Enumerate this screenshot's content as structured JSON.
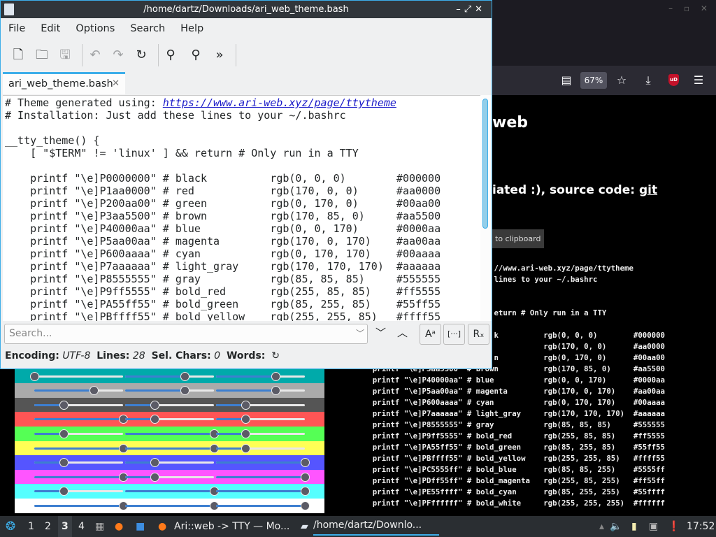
{
  "editor_window": {
    "title": "/home/dartz/Downloads/ari_web_theme.bash",
    "menu": [
      "File",
      "Edit",
      "Options",
      "Search",
      "Help"
    ],
    "toolbar": [
      {
        "icon": "new-file-icon"
      },
      {
        "icon": "open-folder-icon"
      },
      {
        "icon": "save-icon",
        "disabled": true
      },
      {
        "icon": "undo-icon",
        "disabled": true
      },
      {
        "icon": "redo-icon",
        "disabled": true
      },
      {
        "icon": "reload-icon"
      },
      {
        "icon": "find-icon"
      },
      {
        "icon": "find-replace-icon"
      },
      {
        "icon": "more-icon"
      }
    ],
    "tab_label": "ari_web_theme.bash",
    "header_lines": [
      "# Theme generated using: ",
      "# Installation: Just add these lines to your ~/.bashrc",
      "",
      "__tty_theme() {",
      "    [ \"$TERM\" != 'linux' ] && return # Only run in a TTY",
      ""
    ],
    "link": "https://www.ari-web.xyz/page/ttytheme",
    "search_placeholder": "Search...",
    "search_buttons": [
      "Aᵃ",
      "[···]",
      "Rₓ"
    ],
    "status": {
      "encoding_label": "Encoding:",
      "encoding": "UTF-8",
      "lines_label": "Lines:",
      "lines": "28",
      "sel_label": "Sel. Chars:",
      "sel": "0",
      "words_label": "Words:"
    }
  },
  "colors": [
    {
      "idx": "0",
      "hex6": "000000",
      "name": "black",
      "rgb": [
        0,
        0,
        0
      ]
    },
    {
      "idx": "1",
      "hex6": "aa0000",
      "name": "red",
      "rgb": [
        170,
        0,
        0
      ]
    },
    {
      "idx": "2",
      "hex6": "00aa00",
      "name": "green",
      "rgb": [
        0,
        170,
        0
      ]
    },
    {
      "idx": "3",
      "hex6": "aa5500",
      "name": "brown",
      "rgb": [
        170,
        85,
        0
      ]
    },
    {
      "idx": "4",
      "hex6": "0000aa",
      "name": "blue",
      "rgb": [
        0,
        0,
        170
      ]
    },
    {
      "idx": "5",
      "hex6": "aa00aa",
      "name": "magenta",
      "rgb": [
        170,
        0,
        170
      ]
    },
    {
      "idx": "6",
      "hex6": "00aaaa",
      "name": "cyan",
      "rgb": [
        0,
        170,
        170
      ]
    },
    {
      "idx": "7",
      "hex6": "aaaaaa",
      "name": "light_gray",
      "rgb": [
        170,
        170,
        170
      ]
    },
    {
      "idx": "8",
      "hex6": "555555",
      "name": "gray",
      "rgb": [
        85,
        85,
        85
      ]
    },
    {
      "idx": "9",
      "hex6": "ff5555",
      "name": "bold_red",
      "rgb": [
        255,
        85,
        85
      ]
    },
    {
      "idx": "A",
      "hex6": "55ff55",
      "name": "bold_green",
      "rgb": [
        85,
        255,
        85
      ]
    },
    {
      "idx": "B",
      "hex6": "ffff55",
      "name": "bold_yellow",
      "rgb": [
        255,
        255,
        85
      ]
    },
    {
      "idx": "C",
      "hex6": "5555ff",
      "name": "bold_blue",
      "rgb": [
        85,
        85,
        255
      ]
    },
    {
      "idx": "D",
      "hex6": "ff55ff",
      "name": "bold_magenta",
      "rgb": [
        255,
        85,
        255
      ]
    },
    {
      "idx": "E",
      "hex6": "55ffff",
      "name": "bold_cyan",
      "rgb": [
        85,
        255,
        255
      ]
    },
    {
      "idx": "F",
      "hex6": "ffffff",
      "name": "bold_white",
      "rgb": [
        255,
        255,
        255
      ]
    }
  ],
  "browser": {
    "zoom": "67%",
    "heading_fragment": "web",
    "source_fragment": "iated :), source code: ",
    "source_link": "git",
    "copy_fragment": "to clipboard",
    "ublock_label": "uD"
  },
  "taskbar": {
    "workspaces": [
      "1",
      "2",
      "3",
      "4"
    ],
    "active_workspace": "3",
    "tasks": [
      "Ari::web -> TTY — Mo...",
      "/home/dartz/Downlo..."
    ],
    "clock": "17:52"
  }
}
